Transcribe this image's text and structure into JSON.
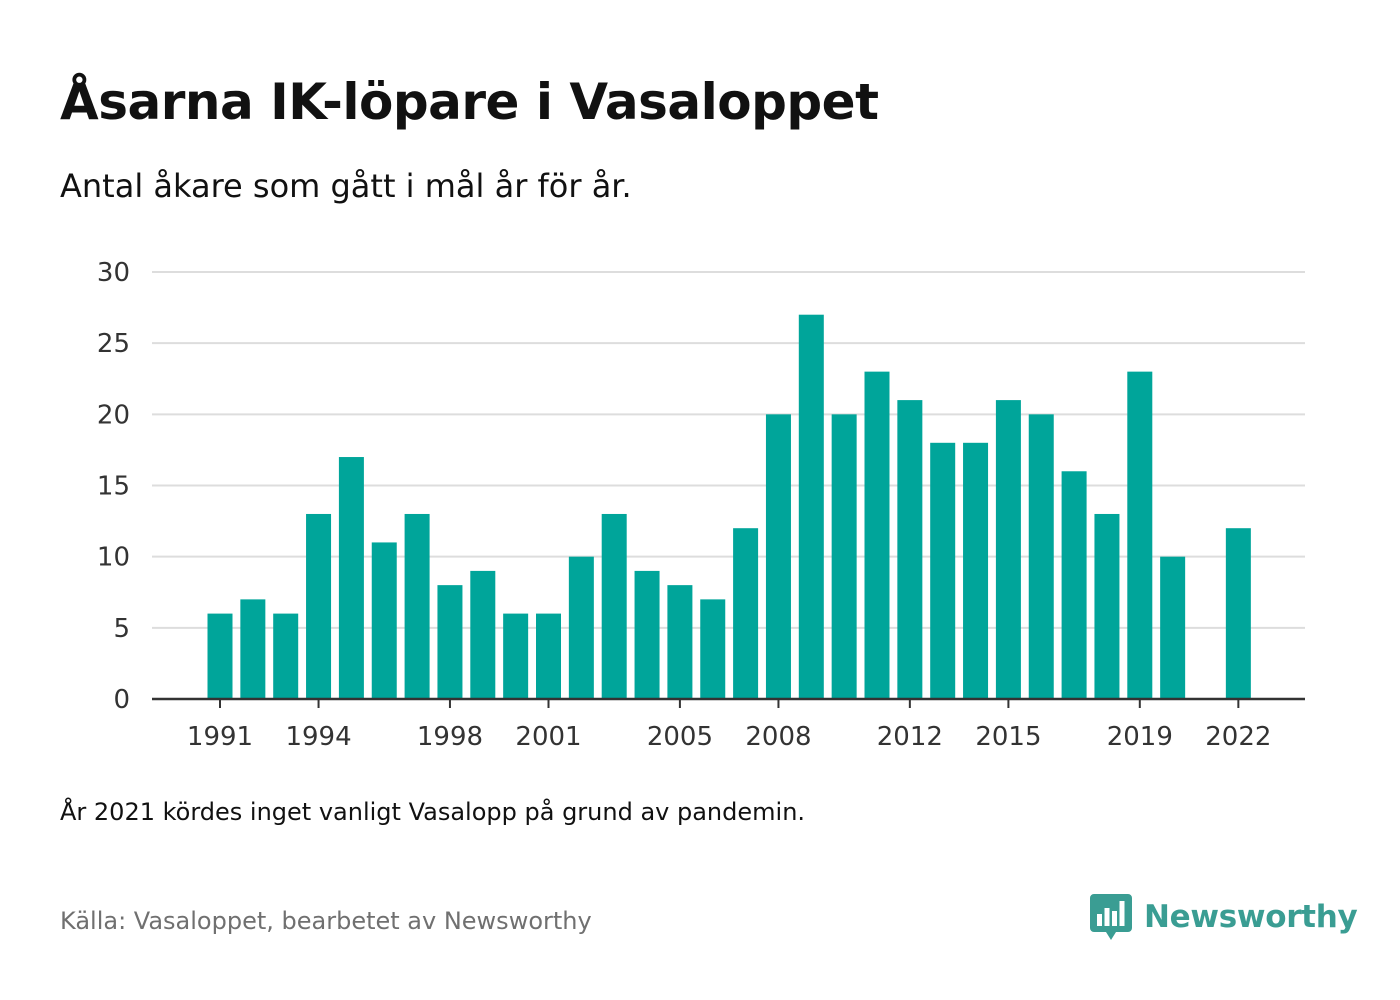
{
  "title": "Åsarna IK-löpare i Vasaloppet",
  "subtitle": "Antal åkare som gått i mål år för år.",
  "note": "År 2021 kördes inget vanligt Vasalopp på grund av pandemin.",
  "source": "Källa: Vasaloppet, bearbetet av Newsworthy",
  "brand": "Newsworthy",
  "colors": {
    "bar": "#00a59a",
    "grid": "#dddddd",
    "axis": "#333333",
    "brand": "#3a9d93"
  },
  "chart_data": {
    "type": "bar",
    "categories": [
      "1991",
      "1992",
      "1993",
      "1994",
      "1995",
      "1996",
      "1997",
      "1998",
      "1999",
      "2000",
      "2001",
      "2002",
      "2003",
      "2004",
      "2005",
      "2006",
      "2007",
      "2008",
      "2009",
      "2010",
      "2011",
      "2012",
      "2013",
      "2014",
      "2015",
      "2016",
      "2017",
      "2018",
      "2019",
      "2020",
      "2021",
      "2022"
    ],
    "values": [
      6,
      7,
      6,
      13,
      17,
      11,
      13,
      8,
      9,
      6,
      6,
      10,
      13,
      9,
      8,
      7,
      12,
      20,
      27,
      20,
      23,
      21,
      18,
      18,
      21,
      20,
      16,
      13,
      23,
      10,
      null,
      12
    ],
    "x_tick_labels": [
      "1991",
      "1994",
      "1998",
      "2001",
      "2005",
      "2008",
      "2012",
      "2015",
      "2019",
      "2022"
    ],
    "y_ticks": [
      0,
      5,
      10,
      15,
      20,
      25,
      30
    ],
    "ylim": [
      0,
      30
    ],
    "xlabel": "",
    "ylabel": "",
    "grid": true,
    "legend": "none"
  }
}
